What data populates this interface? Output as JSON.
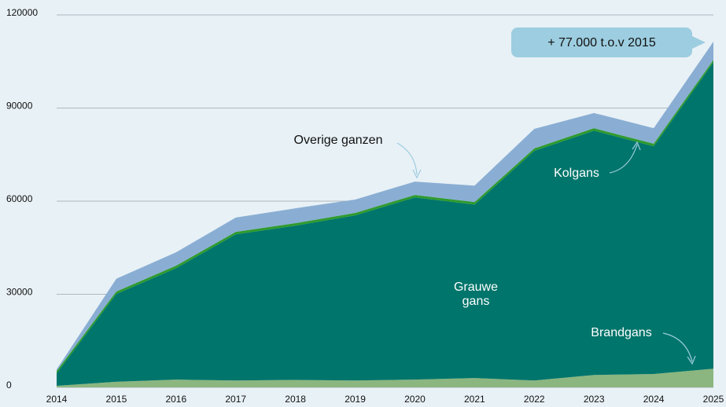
{
  "chart_data": {
    "type": "stacked-area",
    "categories": [
      "2014",
      "2015",
      "2016",
      "2017",
      "2018",
      "2019",
      "2020",
      "2021",
      "2022",
      "2023",
      "2024",
      "2025"
    ],
    "series": [
      {
        "name": "Brandgans",
        "color": "#8bb680",
        "values": [
          500,
          1800,
          2500,
          2200,
          2400,
          2200,
          2500,
          3000,
          2200,
          4000,
          4300,
          6000
        ]
      },
      {
        "name": "Grauwe gans",
        "color": "#00756b",
        "values": [
          4000,
          28300,
          35900,
          47100,
          49700,
          53200,
          58700,
          55900,
          74000,
          78700,
          73400,
          98700
        ]
      },
      {
        "name": "Kolgans",
        "color": "#2e9b2e",
        "values": [
          800,
          800,
          800,
          800,
          800,
          800,
          800,
          800,
          800,
          800,
          800,
          800
        ]
      },
      {
        "name": "Overige ganzen",
        "color": "#8aaed3",
        "values": [
          500,
          4100,
          4300,
          4600,
          4800,
          4300,
          4300,
          5300,
          6300,
          4900,
          5000,
          5900
        ]
      }
    ],
    "annotation": "+ 77.000 t.o.v 2015",
    "ylim": [
      0,
      120000
    ],
    "yticks": [
      0,
      30000,
      60000,
      90000,
      120000
    ],
    "grid": true
  }
}
